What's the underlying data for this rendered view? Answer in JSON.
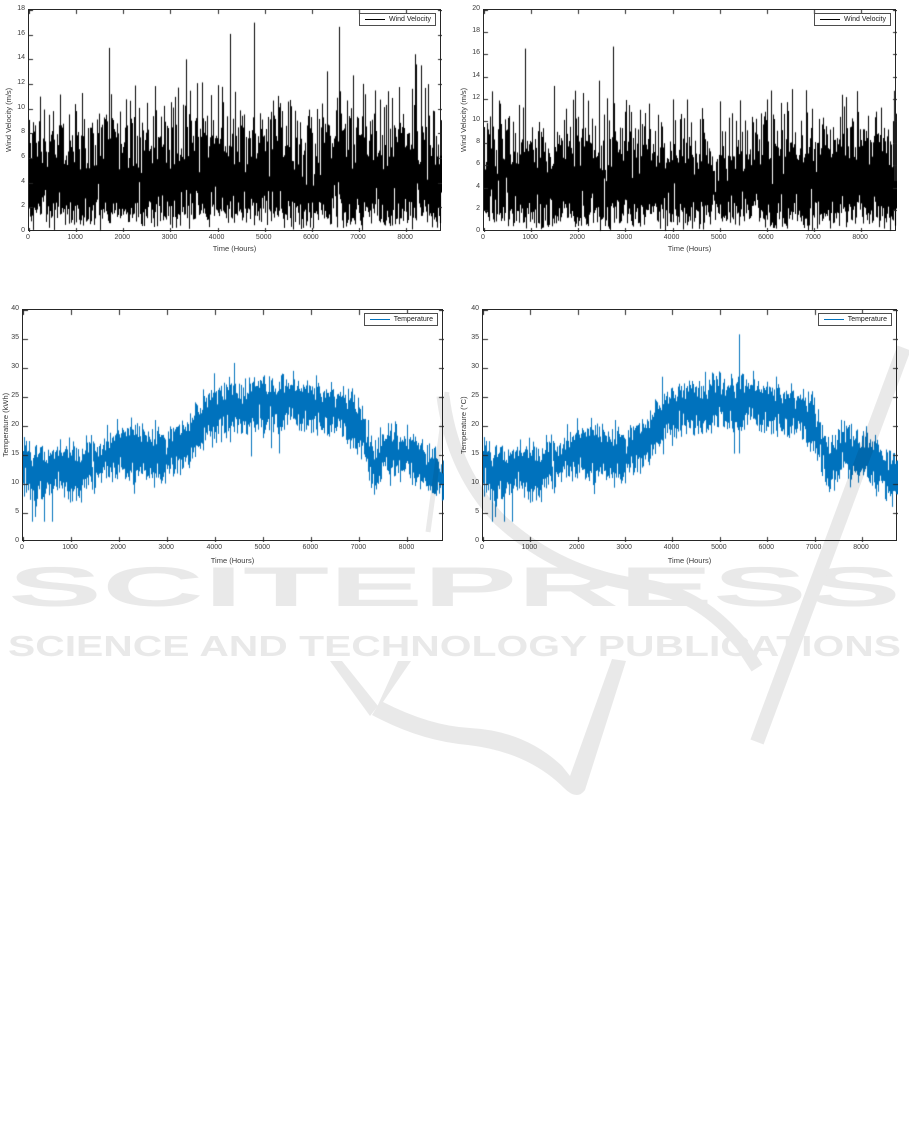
{
  "page": {
    "background": "#ffffff"
  },
  "watermark": {
    "title": "SCITEPRESS",
    "subtitle": "SCIENCE AND TECHNOLOGY PUBLICATIONS",
    "color": "#e9e9e9"
  },
  "chart_data": [
    {
      "id": "wind-velocity-1",
      "type": "line",
      "title": "",
      "xlabel": "Time (Hours)",
      "ylabel": "Wind Velocity (m/s)",
      "legend": [
        "Wind Velocity"
      ],
      "legend_position": "top-right",
      "line_color": "#000000",
      "grid": false,
      "xlim": [
        0,
        8760
      ],
      "ylim": [
        0,
        18
      ],
      "xticks": [
        0,
        1000,
        2000,
        3000,
        4000,
        5000,
        6000,
        7000,
        8000
      ],
      "yticks": [
        0,
        2,
        4,
        6,
        8,
        10,
        12,
        14,
        16,
        18
      ],
      "series_profile": {
        "model": "weibull",
        "shape_k": 2.0,
        "scale_lambda": 5.0,
        "mean": 4.4,
        "value_range": [
          0.1,
          17.2
        ],
        "samples": 8760,
        "tall_spike_probability": 0.012,
        "seed": 101
      }
    },
    {
      "id": "wind-velocity-2",
      "type": "line",
      "title": "",
      "xlabel": "Time (Hours)",
      "ylabel": "Wind Velocity (m/s)",
      "legend": [
        "Wind Velocity"
      ],
      "legend_position": "top-right",
      "line_color": "#000000",
      "grid": false,
      "xlim": [
        0,
        8760
      ],
      "ylim": [
        0,
        20
      ],
      "xticks": [
        0,
        1000,
        2000,
        3000,
        4000,
        5000,
        6000,
        7000,
        8000
      ],
      "yticks": [
        0,
        2,
        4,
        6,
        8,
        10,
        12,
        14,
        16,
        18,
        20
      ],
      "series_profile": {
        "model": "weibull",
        "shape_k": 2.0,
        "scale_lambda": 5.2,
        "mean": 4.6,
        "value_range": [
          0.1,
          19.0
        ],
        "samples": 8760,
        "tall_spike_probability": 0.013,
        "seed": 202
      }
    },
    {
      "id": "temperature-1",
      "type": "line",
      "title": "",
      "xlabel": "Time (Hours)",
      "ylabel": "Temperature (kWh)",
      "legend": [
        "Temperature"
      ],
      "legend_position": "top-right",
      "line_color": "#0072BD",
      "grid": false,
      "xlim": [
        0,
        8760
      ],
      "ylim": [
        0,
        40
      ],
      "xticks": [
        0,
        1000,
        2000,
        3000,
        4000,
        5000,
        6000,
        7000,
        8000
      ],
      "yticks": [
        0,
        5,
        10,
        15,
        20,
        25,
        30,
        35,
        40
      ],
      "series_profile": {
        "model": "seasonal-noise",
        "trend_x": [
          0,
          300,
          700,
          1100,
          1600,
          2000,
          2600,
          3000,
          3400,
          3800,
          4200,
          4600,
          5000,
          5400,
          5800,
          6200,
          6600,
          7000,
          7300,
          7600,
          8000,
          8400,
          8760
        ],
        "trend_y": [
          13,
          11,
          13,
          12,
          14,
          16,
          15,
          15,
          17,
          21,
          23,
          23,
          24,
          24,
          24,
          23,
          22,
          20,
          13,
          16,
          15,
          13,
          11
        ],
        "noise_sigma": 2.2,
        "spike_probability": 0.012,
        "dip_probability": 0.01,
        "spike_max": 37.3,
        "value_range": [
          3.5,
          37.3
        ],
        "samples": 8760,
        "seed": 303
      }
    },
    {
      "id": "temperature-2",
      "type": "line",
      "title": "",
      "xlabel": "Time (Hours)",
      "ylabel": "Temperature (°C)",
      "legend": [
        "Temperature"
      ],
      "legend_position": "top-right",
      "line_color": "#0072BD",
      "grid": false,
      "xlim": [
        0,
        8760
      ],
      "ylim": [
        0,
        40
      ],
      "xticks": [
        0,
        1000,
        2000,
        3000,
        4000,
        5000,
        6000,
        7000,
        8000
      ],
      "yticks": [
        0,
        5,
        10,
        15,
        20,
        25,
        30,
        35,
        40
      ],
      "series_profile": {
        "model": "seasonal-noise",
        "trend_x": [
          0,
          300,
          700,
          1100,
          1600,
          2000,
          2600,
          3000,
          3400,
          3800,
          4200,
          4600,
          5000,
          5400,
          5800,
          6200,
          6600,
          7000,
          7300,
          7600,
          8000,
          8400,
          8760
        ],
        "trend_y": [
          13,
          11,
          13,
          12,
          14,
          16,
          15,
          15,
          17,
          21,
          23,
          23,
          24,
          24,
          24,
          23,
          22,
          20,
          13,
          16,
          15,
          13,
          11
        ],
        "noise_sigma": 2.2,
        "spike_probability": 0.012,
        "dip_probability": 0.01,
        "spike_max": 37.3,
        "value_range": [
          3.5,
          37.3
        ],
        "samples": 8760,
        "seed": 303
      }
    }
  ]
}
